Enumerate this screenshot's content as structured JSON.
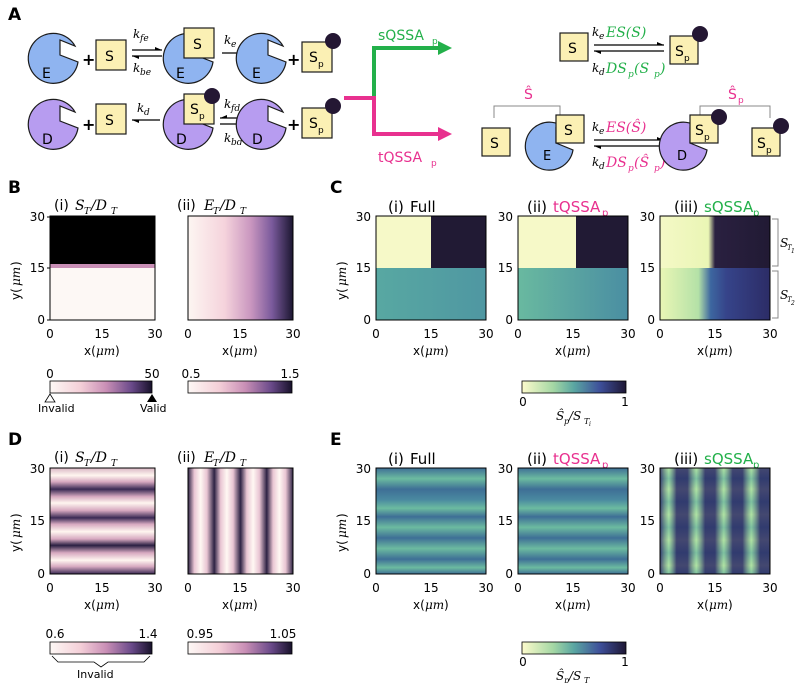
{
  "panel_letters": [
    "A",
    "B",
    "C",
    "D",
    "E"
  ],
  "colors": {
    "enzyme_E": "#8fb4f0",
    "enzyme_D": "#b79cf0",
    "substrate": "#fbf0b4",
    "phosphate": "#241733",
    "sqssa": "#23b04a",
    "tqssa": "#e8318f"
  },
  "panel_A": {
    "species": {
      "E": "E",
      "S": "S",
      "D": "D",
      "Sp_main": "S",
      "Sp_sub": "p"
    },
    "rates": {
      "kfe_k": "k",
      "kfe_sub": "fe",
      "kbe_k": "k",
      "kbe_sub": "be",
      "ke_k": "k",
      "ke_sub": "e",
      "kd_k": "k",
      "kd_sub": "d",
      "kfd_k": "k",
      "kfd_sub": "fd",
      "kbd_k": "k",
      "kbd_sub": "bd"
    },
    "sqssa_label_main": "sQSSA",
    "sqssa_label_sub": "p",
    "tqssa_label_main": "tQSSA",
    "tqssa_label_sub": "p",
    "sqssa_forward": "ES(S)",
    "sqssa_reverse": "DS",
    "sqssa_reverse_arg": "(S",
    "sqssa_reverse_arg_sub": "p",
    "sqssa_reverse_close": ")",
    "tqssa_forward": "ES(Ŝ)",
    "tqssa_reverse": "DS",
    "tqssa_reverse_arg": "(Ŝ",
    "tqssa_reverse_arg_sub": "p",
    "tqssa_reverse_close": ")",
    "s_hat": "Ŝ",
    "sp_hat_main": "Ŝ",
    "sp_hat_sub": "p"
  },
  "panel_B": {
    "titles": [
      {
        "num": "(i)",
        "main": "S",
        "sub1": "T",
        "slash": "/D",
        "sub2": "T"
      },
      {
        "num": "(ii)",
        "main": "E",
        "sub1": "T",
        "slash": "/D",
        "sub2": "T"
      }
    ],
    "colorbars": [
      {
        "min": "0",
        "max": "50",
        "left_marker": "Invalid",
        "right_marker": "Valid"
      },
      {
        "min": "0.5",
        "max": "1.5"
      }
    ]
  },
  "panel_C": {
    "titles": [
      {
        "num": "(i)",
        "label": "Full"
      },
      {
        "num": "(ii)",
        "label": "tQSSA",
        "sub": "p"
      },
      {
        "num": "(iii)",
        "label": "sQSSA",
        "sub": "p"
      }
    ],
    "brackets": [
      {
        "main": "S",
        "sub": "T",
        "subsub": "1"
      },
      {
        "main": "S",
        "sub": "T",
        "subsub": "2"
      }
    ],
    "colorbar": {
      "min": "0",
      "max": "1",
      "label_main": "Ŝ",
      "label_sub": "p",
      "label_den": "/S",
      "label_den_sub": "T",
      "label_den_subsub": "i"
    }
  },
  "panel_D": {
    "titles": [
      {
        "num": "(i)",
        "main": "S",
        "sub1": "T",
        "slash": "/D",
        "sub2": "T"
      },
      {
        "num": "(ii)",
        "main": "E",
        "sub1": "T",
        "slash": "/D",
        "sub2": "T"
      }
    ],
    "colorbars": [
      {
        "min": "0.6",
        "max": "1.4",
        "bracket_label": "Invalid"
      },
      {
        "min": "0.95",
        "max": "1.05"
      }
    ]
  },
  "panel_E": {
    "titles": [
      {
        "num": "(i)",
        "label": "Full"
      },
      {
        "num": "(ii)",
        "label": "tQSSA",
        "sub": "p"
      },
      {
        "num": "(iii)",
        "label": "sQSSA",
        "sub": "p"
      }
    ],
    "colorbar": {
      "min": "0",
      "max": "1",
      "label_main": "Ŝ",
      "label_sub": "p",
      "label_den": "/S",
      "label_den_sub": "T"
    }
  },
  "axes": {
    "ticks": [
      "0",
      "15",
      "30"
    ],
    "xlabel_main": "x(",
    "xlabel_unit": "μm",
    "xlabel_close": ")",
    "ylabel_main": "y(",
    "ylabel_unit": "μm",
    "ylabel_close": ")"
  }
}
